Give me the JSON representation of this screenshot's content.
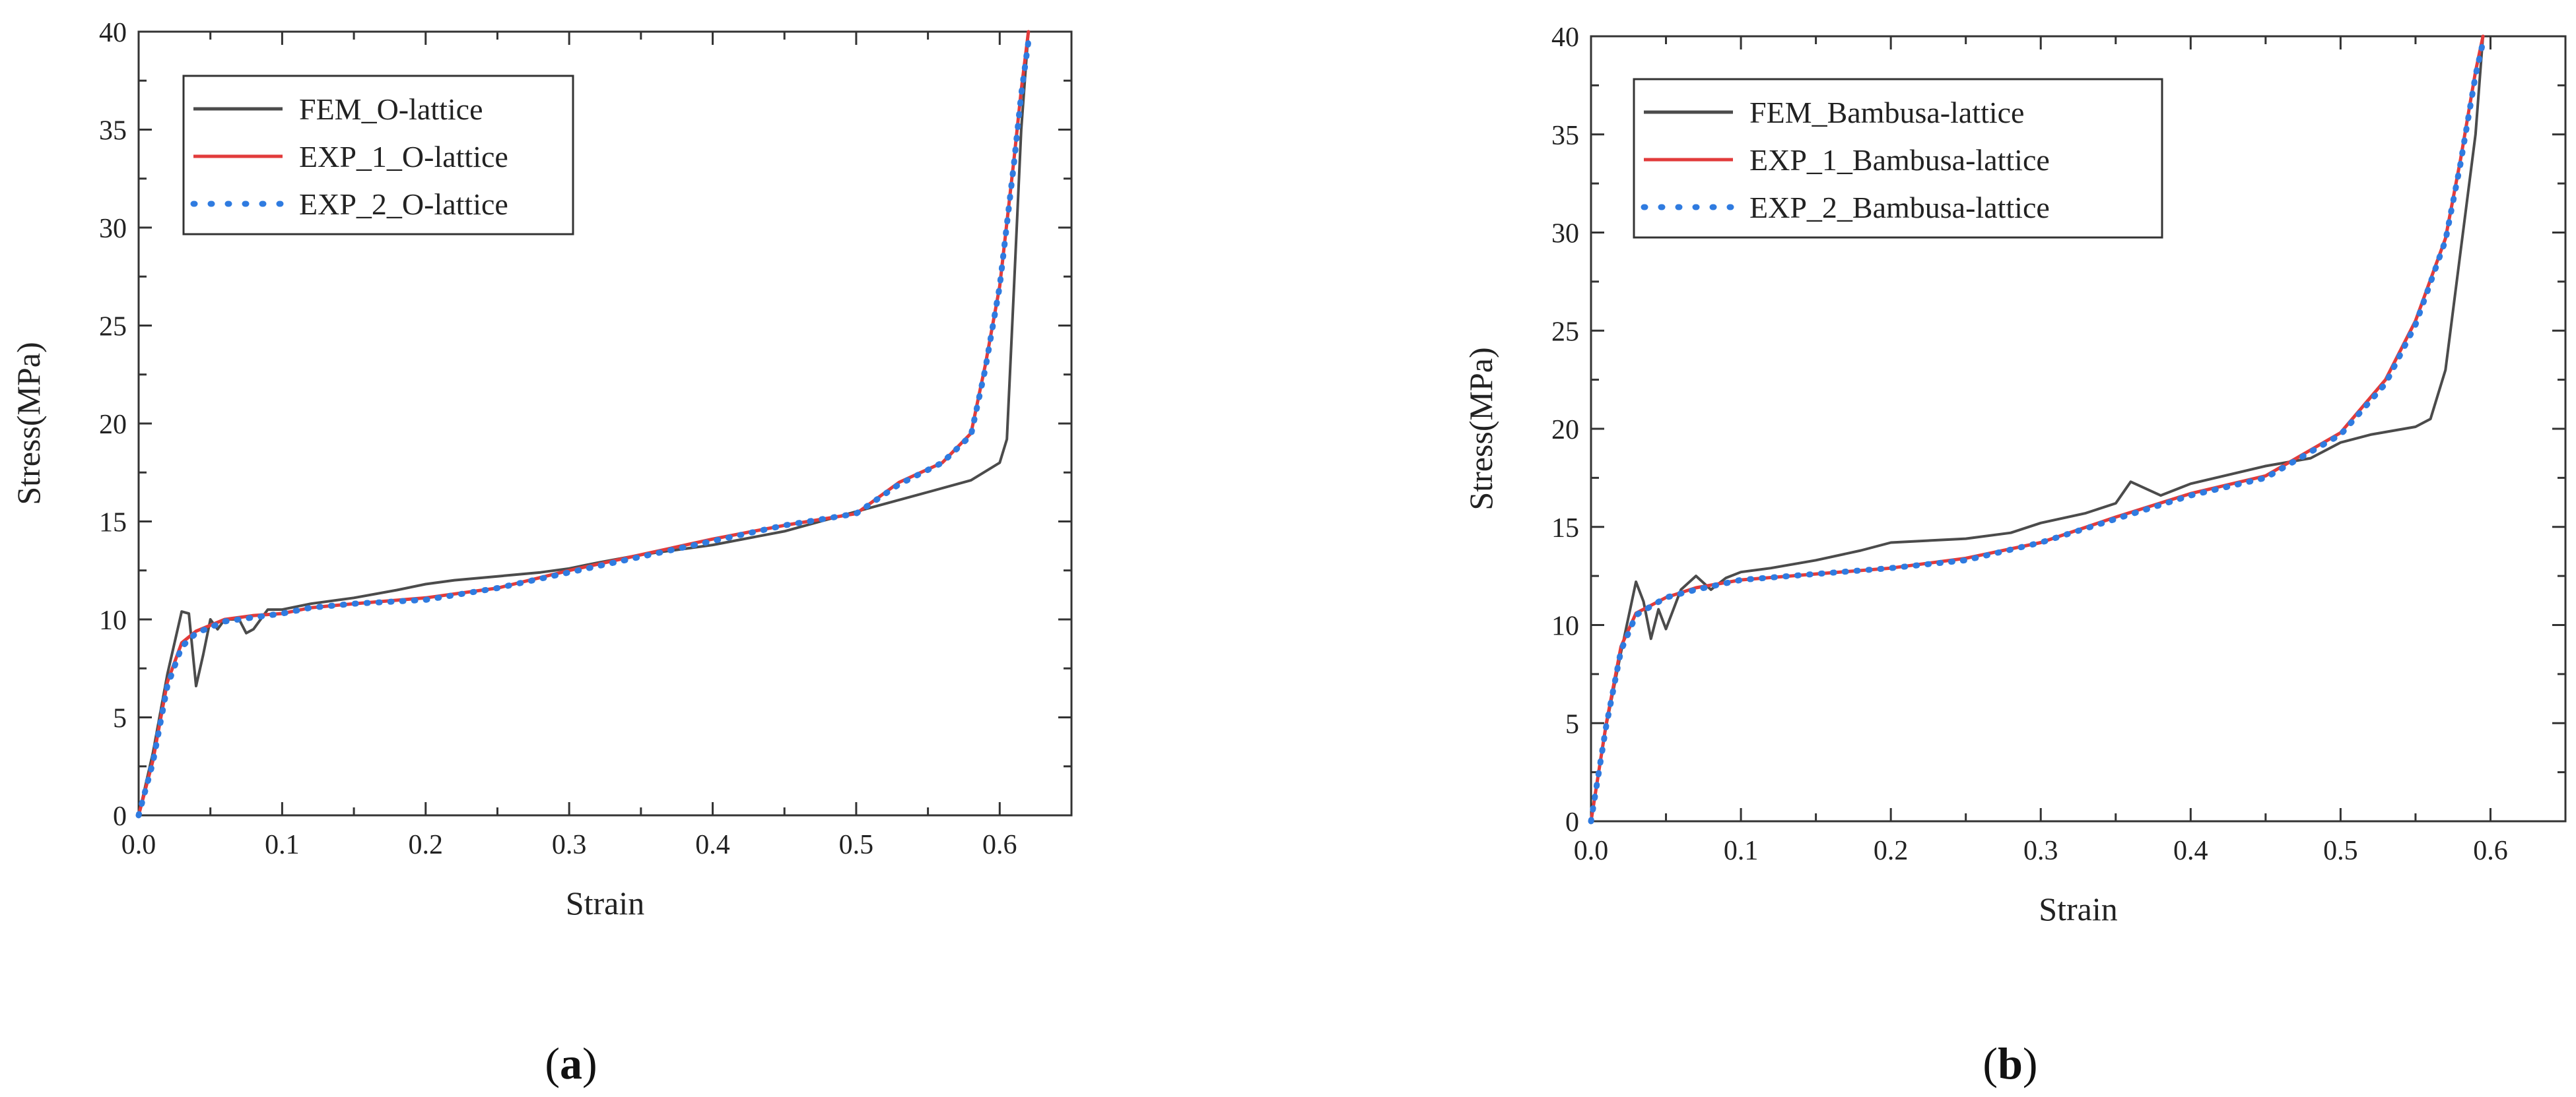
{
  "chart_data": [
    {
      "type": "line",
      "panel_label": "a",
      "xlabel": "Strain",
      "ylabel": "Stress(MPa)",
      "xlim": [
        0,
        0.65
      ],
      "ylim": [
        0,
        40
      ],
      "xticks": [
        0.0,
        0.1,
        0.2,
        0.3,
        0.4,
        0.5,
        0.6
      ],
      "yticks": [
        0,
        5,
        10,
        15,
        20,
        25,
        30,
        35,
        40
      ],
      "tick_format": [
        "0.0",
        "0.1",
        "0.2",
        "0.3",
        "0.4",
        "0.5",
        "0.6"
      ],
      "ytick_format": [
        "0",
        "5",
        "10",
        "15",
        "20",
        "25",
        "30",
        "35",
        "40"
      ],
      "legend_position": "top-left",
      "series": [
        {
          "name": "FEM_O-lattice",
          "color": "#4b4b4b",
          "style": "solid",
          "points": [
            [
              0.0,
              0.0
            ],
            [
              0.01,
              3.2
            ],
            [
              0.02,
              7.2
            ],
            [
              0.03,
              10.4
            ],
            [
              0.035,
              10.3
            ],
            [
              0.04,
              6.6
            ],
            [
              0.045,
              8.2
            ],
            [
              0.05,
              10.0
            ],
            [
              0.055,
              9.5
            ],
            [
              0.06,
              10.0
            ],
            [
              0.07,
              10.0
            ],
            [
              0.075,
              9.3
            ],
            [
              0.08,
              9.5
            ],
            [
              0.09,
              10.5
            ],
            [
              0.1,
              10.5
            ],
            [
              0.12,
              10.8
            ],
            [
              0.15,
              11.1
            ],
            [
              0.18,
              11.5
            ],
            [
              0.2,
              11.8
            ],
            [
              0.22,
              12.0
            ],
            [
              0.25,
              12.2
            ],
            [
              0.28,
              12.4
            ],
            [
              0.3,
              12.6
            ],
            [
              0.32,
              12.9
            ],
            [
              0.35,
              13.3
            ],
            [
              0.4,
              13.8
            ],
            [
              0.45,
              14.5
            ],
            [
              0.5,
              15.5
            ],
            [
              0.55,
              16.5
            ],
            [
              0.58,
              17.1
            ],
            [
              0.6,
              18.0
            ],
            [
              0.605,
              19.2
            ],
            [
              0.61,
              27.0
            ],
            [
              0.615,
              35.0
            ],
            [
              0.62,
              40.0
            ]
          ]
        },
        {
          "name": "EXP_1_O-lattice",
          "color": "#e23b3b",
          "style": "solid",
          "points": [
            [
              0.0,
              0.0
            ],
            [
              0.01,
              2.8
            ],
            [
              0.02,
              6.8
            ],
            [
              0.03,
              8.8
            ],
            [
              0.04,
              9.4
            ],
            [
              0.06,
              10.0
            ],
            [
              0.08,
              10.2
            ],
            [
              0.1,
              10.3
            ],
            [
              0.12,
              10.6
            ],
            [
              0.15,
              10.8
            ],
            [
              0.2,
              11.1
            ],
            [
              0.25,
              11.6
            ],
            [
              0.3,
              12.5
            ],
            [
              0.35,
              13.3
            ],
            [
              0.4,
              14.1
            ],
            [
              0.45,
              14.8
            ],
            [
              0.5,
              15.4
            ],
            [
              0.53,
              17.0
            ],
            [
              0.56,
              18.0
            ],
            [
              0.58,
              19.5
            ],
            [
              0.59,
              23.0
            ],
            [
              0.6,
              27.0
            ],
            [
              0.61,
              33.5
            ],
            [
              0.615,
              37.0
            ],
            [
              0.62,
              40.0
            ]
          ]
        },
        {
          "name": "EXP_2_O-lattice",
          "color": "#2f7be0",
          "style": "dotted",
          "points": [
            [
              0.0,
              0.0
            ],
            [
              0.01,
              2.7
            ],
            [
              0.02,
              6.6
            ],
            [
              0.03,
              8.6
            ],
            [
              0.04,
              9.3
            ],
            [
              0.06,
              9.9
            ],
            [
              0.08,
              10.1
            ],
            [
              0.1,
              10.3
            ],
            [
              0.12,
              10.6
            ],
            [
              0.15,
              10.8
            ],
            [
              0.2,
              11.0
            ],
            [
              0.25,
              11.6
            ],
            [
              0.3,
              12.4
            ],
            [
              0.35,
              13.2
            ],
            [
              0.4,
              14.0
            ],
            [
              0.45,
              14.8
            ],
            [
              0.5,
              15.4
            ],
            [
              0.53,
              16.9
            ],
            [
              0.56,
              18.0
            ],
            [
              0.58,
              19.4
            ],
            [
              0.59,
              22.8
            ],
            [
              0.6,
              27.0
            ],
            [
              0.61,
              33.3
            ],
            [
              0.615,
              36.8
            ],
            [
              0.62,
              39.5
            ]
          ]
        }
      ]
    },
    {
      "type": "line",
      "panel_label": "b",
      "xlabel": "Strain",
      "ylabel": "Stress(MPa)",
      "xlim": [
        0,
        0.65
      ],
      "ylim": [
        0,
        40
      ],
      "xticks": [
        0.0,
        0.1,
        0.2,
        0.3,
        0.4,
        0.5,
        0.6
      ],
      "yticks": [
        0,
        5,
        10,
        15,
        20,
        25,
        30,
        35,
        40
      ],
      "tick_format": [
        "0.0",
        "0.1",
        "0.2",
        "0.3",
        "0.4",
        "0.5",
        "0.6"
      ],
      "ytick_format": [
        "0",
        "5",
        "10",
        "15",
        "20",
        "25",
        "30",
        "35",
        "40"
      ],
      "legend_position": "top-left",
      "series": [
        {
          "name": "FEM_Bambusa-lattice",
          "color": "#4b4b4b",
          "style": "solid",
          "points": [
            [
              0.0,
              0.0
            ],
            [
              0.01,
              4.8
            ],
            [
              0.02,
              8.6
            ],
            [
              0.03,
              12.2
            ],
            [
              0.035,
              11.2
            ],
            [
              0.04,
              9.3
            ],
            [
              0.045,
              10.8
            ],
            [
              0.05,
              9.8
            ],
            [
              0.06,
              11.8
            ],
            [
              0.07,
              12.5
            ],
            [
              0.08,
              11.8
            ],
            [
              0.09,
              12.4
            ],
            [
              0.1,
              12.7
            ],
            [
              0.12,
              12.9
            ],
            [
              0.15,
              13.3
            ],
            [
              0.18,
              13.8
            ],
            [
              0.2,
              14.2
            ],
            [
              0.25,
              14.4
            ],
            [
              0.28,
              14.7
            ],
            [
              0.3,
              15.2
            ],
            [
              0.33,
              15.7
            ],
            [
              0.35,
              16.2
            ],
            [
              0.36,
              17.3
            ],
            [
              0.38,
              16.6
            ],
            [
              0.4,
              17.2
            ],
            [
              0.45,
              18.1
            ],
            [
              0.48,
              18.5
            ],
            [
              0.5,
              19.3
            ],
            [
              0.52,
              19.7
            ],
            [
              0.55,
              20.1
            ],
            [
              0.56,
              20.5
            ],
            [
              0.57,
              23.0
            ],
            [
              0.58,
              29.0
            ],
            [
              0.59,
              35.0
            ],
            [
              0.595,
              40.0
            ]
          ]
        },
        {
          "name": "EXP_1_Bambusa-lattice",
          "color": "#e23b3b",
          "style": "solid",
          "points": [
            [
              0.0,
              0.0
            ],
            [
              0.01,
              4.9
            ],
            [
              0.02,
              8.9
            ],
            [
              0.03,
              10.6
            ],
            [
              0.05,
              11.4
            ],
            [
              0.07,
              11.9
            ],
            [
              0.1,
              12.3
            ],
            [
              0.15,
              12.6
            ],
            [
              0.2,
              12.9
            ],
            [
              0.25,
              13.4
            ],
            [
              0.3,
              14.2
            ],
            [
              0.35,
              15.5
            ],
            [
              0.4,
              16.7
            ],
            [
              0.45,
              17.6
            ],
            [
              0.5,
              19.8
            ],
            [
              0.53,
              22.5
            ],
            [
              0.55,
              25.5
            ],
            [
              0.57,
              29.7
            ],
            [
              0.58,
              33.7
            ],
            [
              0.59,
              38.2
            ],
            [
              0.595,
              40.0
            ]
          ]
        },
        {
          "name": "EXP_2_Bambusa-lattice",
          "color": "#2f7be0",
          "style": "dotted",
          "points": [
            [
              0.0,
              0.0
            ],
            [
              0.01,
              4.8
            ],
            [
              0.02,
              8.7
            ],
            [
              0.03,
              10.5
            ],
            [
              0.05,
              11.4
            ],
            [
              0.07,
              11.8
            ],
            [
              0.1,
              12.3
            ],
            [
              0.15,
              12.6
            ],
            [
              0.2,
              12.9
            ],
            [
              0.25,
              13.3
            ],
            [
              0.3,
              14.2
            ],
            [
              0.35,
              15.4
            ],
            [
              0.4,
              16.6
            ],
            [
              0.45,
              17.5
            ],
            [
              0.5,
              19.7
            ],
            [
              0.53,
              22.3
            ],
            [
              0.55,
              25.3
            ],
            [
              0.57,
              29.6
            ],
            [
              0.58,
              33.5
            ],
            [
              0.59,
              38.0
            ],
            [
              0.595,
              39.7
            ]
          ]
        }
      ]
    }
  ]
}
